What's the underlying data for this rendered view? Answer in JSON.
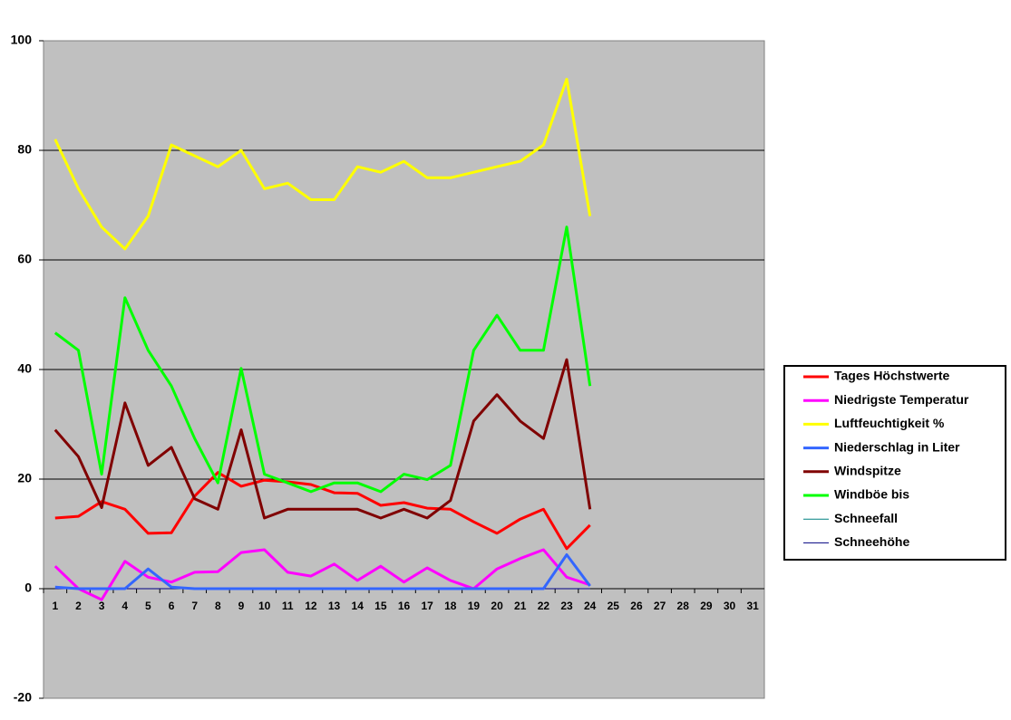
{
  "chart_data": {
    "type": "line",
    "categories": [
      "1",
      "2",
      "3",
      "4",
      "5",
      "6",
      "7",
      "8",
      "9",
      "10",
      "11",
      "12",
      "13",
      "14",
      "15",
      "16",
      "17",
      "18",
      "19",
      "20",
      "21",
      "22",
      "23",
      "24",
      "25",
      "26",
      "27",
      "28",
      "29",
      "30",
      "31"
    ],
    "ylim": [
      -20,
      100
    ],
    "yticks": [
      -20,
      0,
      20,
      40,
      60,
      80,
      100
    ],
    "grid": true,
    "legend": "right",
    "series": [
      {
        "name": "Schneefall",
        "color": "#008080",
        "values": [
          0,
          0,
          0,
          0,
          0,
          0,
          0,
          0,
          0,
          0,
          0,
          0,
          0,
          0,
          0,
          0,
          0,
          0,
          0,
          0,
          0,
          0,
          0,
          0,
          null,
          null,
          null,
          null,
          null,
          null,
          null
        ]
      },
      {
        "name": "Schneehöhe",
        "color": "#000080",
        "values": [
          0,
          0,
          0,
          0,
          0,
          0,
          0,
          0,
          0,
          0,
          0,
          0,
          0,
          0,
          0,
          0,
          0,
          0,
          0,
          0,
          0,
          0,
          0,
          0,
          null,
          null,
          null,
          null,
          null,
          null,
          null
        ]
      },
      {
        "name": "Tages Höchstwerte",
        "color": "#ff0000",
        "values": [
          12.9,
          13.2,
          15.9,
          14.5,
          10.1,
          10.2,
          16.9,
          21.2,
          18.7,
          19.8,
          19.5,
          19,
          17.5,
          17.4,
          15.2,
          15.7,
          14.7,
          14.5,
          12.2,
          10.1,
          12.7,
          14.5,
          7.3,
          11.6,
          null,
          null,
          null,
          null,
          null,
          null,
          null
        ]
      },
      {
        "name": "Niedrigste Temperatur",
        "color": "#ff00ff",
        "values": [
          4.1,
          0,
          -2,
          5,
          2.1,
          1.2,
          3,
          3.1,
          6.6,
          7.1,
          3,
          2.3,
          4.5,
          1.5,
          4.1,
          1.2,
          3.8,
          1.5,
          0,
          3.6,
          5.5,
          7.1,
          2.1,
          0.7,
          null,
          null,
          null,
          null,
          null,
          null,
          null
        ]
      },
      {
        "name": "Luftfeuchtigkeit %",
        "color": "#ffff00",
        "values": [
          82,
          73,
          66,
          62,
          68,
          81,
          79,
          77,
          80,
          73,
          74,
          71,
          71,
          77,
          76,
          78,
          75,
          75,
          76,
          77,
          78,
          81,
          93,
          68,
          null,
          null,
          null,
          null,
          null,
          null,
          null
        ]
      },
      {
        "name": "Niederschlag in Liter",
        "color": "#3366ff",
        "values": [
          0.3,
          0,
          0,
          0,
          3.6,
          0.3,
          0,
          0,
          0,
          0,
          0,
          0,
          0,
          0,
          0,
          0,
          0,
          0,
          0,
          0,
          0,
          0,
          6.2,
          0.5,
          null,
          null,
          null,
          null,
          null,
          null,
          null
        ]
      },
      {
        "name": "Windspitze",
        "color": "#800000",
        "values": [
          29,
          24.1,
          14.8,
          33.9,
          22.5,
          25.8,
          16.4,
          14.5,
          29,
          12.9,
          14.5,
          14.5,
          14.5,
          14.5,
          12.9,
          14.5,
          12.9,
          16.1,
          30.6,
          35.4,
          30.6,
          27.4,
          41.8,
          14.5,
          null,
          null,
          null,
          null,
          null,
          null,
          null
        ]
      },
      {
        "name": "Windböe bis",
        "color": "#00ff00",
        "values": [
          46.7,
          43.5,
          20.9,
          53.1,
          43.5,
          37,
          27.4,
          19.3,
          40.2,
          20.9,
          19.3,
          17.7,
          19.3,
          19.3,
          17.7,
          20.9,
          19.9,
          22.5,
          43.5,
          49.9,
          43.5,
          43.5,
          66,
          37,
          null,
          null,
          null,
          null,
          null,
          null,
          null
        ]
      }
    ]
  }
}
